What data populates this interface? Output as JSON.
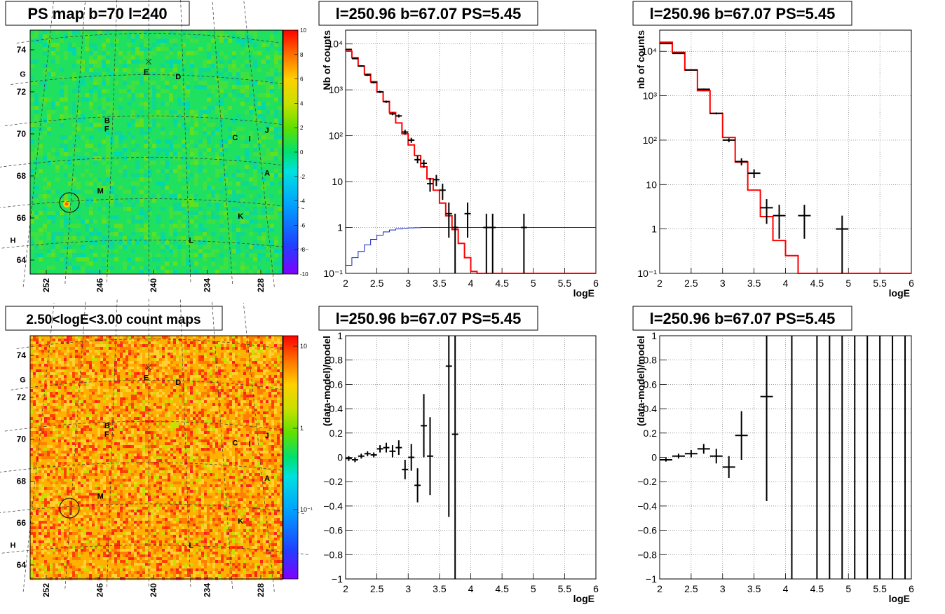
{
  "panels": [
    {
      "id": "psmap",
      "title": "PS map b=70 l=240"
    },
    {
      "id": "spec1",
      "title": "l=250.96 b=67.07 PS=5.45"
    },
    {
      "id": "spec2",
      "title": "l=250.96 b=67.07 PS=5.45"
    },
    {
      "id": "countmap",
      "title": "2.50<logE<3.00 count maps"
    },
    {
      "id": "res1",
      "title": "l=250.96 b=67.07 PS=5.45"
    },
    {
      "id": "res2",
      "title": "l=250.96 b=67.07 PS=5.45"
    }
  ],
  "maps": {
    "yticks": [
      "64",
      "66",
      "68",
      "70",
      "72",
      "74"
    ],
    "xticks": [
      "252",
      "246",
      "240",
      "234",
      "228"
    ],
    "sources": [
      {
        "label": "G",
        "l": 254.7,
        "b": 72.3
      },
      {
        "label": "E",
        "l": 240.3,
        "b": 72.0
      },
      {
        "label": "D",
        "l": 236.6,
        "b": 71.8
      },
      {
        "label": "B",
        "l": 244.6,
        "b": 69.7
      },
      {
        "label": "F",
        "l": 244.6,
        "b": 69.3
      },
      {
        "label": "C",
        "l": 230.6,
        "b": 69.0
      },
      {
        "label": "I",
        "l": 229.0,
        "b": 69.0
      },
      {
        "label": "J",
        "l": 227.0,
        "b": 69.5
      },
      {
        "label": "A",
        "l": 227.5,
        "b": 67.4
      },
      {
        "label": "M",
        "l": 245.0,
        "b": 66.3
      },
      {
        "label": "K",
        "l": 230.7,
        "b": 65.2
      },
      {
        "label": "H",
        "l": 253.5,
        "b": 64.2
      },
      {
        "label": "L",
        "l": 235.8,
        "b": 63.9
      }
    ],
    "psmap_scale": [
      "10",
      "8",
      "6",
      "4",
      "2",
      "0",
      "-2",
      "-4",
      "-6",
      "-8",
      "-10"
    ],
    "count_scale": [
      "10",
      "1",
      "10⁻¹"
    ]
  },
  "chart_data": [
    {
      "type": "step-with-errorbars",
      "ylabel": "Nb of counts",
      "xlabel": "logE",
      "xlim": [
        2,
        6
      ],
      "ylim": [
        0.1,
        20000
      ],
      "yscale": "log",
      "grid": true,
      "xticks": [
        "2",
        "2.5",
        "3",
        "3.5",
        "4",
        "4.5",
        "5",
        "5.5",
        "6"
      ],
      "yticks": [
        "10⁻¹",
        "1",
        "10",
        "10²",
        "10³",
        "10⁴"
      ],
      "model_red": {
        "edges": [
          2,
          2.1,
          2.2,
          2.3,
          2.4,
          2.5,
          2.6,
          2.7,
          2.8,
          2.9,
          3.0,
          3.1,
          3.2,
          3.3,
          3.4,
          3.5,
          3.6,
          3.7,
          3.8,
          3.9,
          4.0,
          4.1,
          6.0
        ],
        "values": [
          7000,
          5000,
          3300,
          2200,
          1500,
          900,
          560,
          320,
          190,
          110,
          63,
          37,
          21,
          11.5,
          6.5,
          3.4,
          1.8,
          0.9,
          0.45,
          0.22,
          0.11,
          0.1
        ]
      },
      "model_blue": {
        "edges": [
          2,
          2.1,
          2.2,
          2.3,
          2.4,
          2.5,
          2.6,
          2.7,
          2.8,
          2.9,
          3.0,
          3.1,
          3.2,
          3.3,
          3.4,
          3.5,
          6.0
        ],
        "values": [
          0.15,
          0.22,
          0.3,
          0.42,
          0.55,
          0.68,
          0.8,
          0.88,
          0.93,
          0.96,
          0.98,
          0.99,
          1,
          1,
          1,
          1
        ]
      },
      "data": [
        {
          "x": 2.05,
          "y": 7600,
          "lo": 7400,
          "hi": 7800
        },
        {
          "x": 2.15,
          "y": 4800,
          "lo": 4650,
          "hi": 4950
        },
        {
          "x": 2.25,
          "y": 3300,
          "lo": 3180,
          "hi": 3420
        },
        {
          "x": 2.35,
          "y": 2100,
          "lo": 2010,
          "hi": 2190
        },
        {
          "x": 2.45,
          "y": 1450,
          "lo": 1380,
          "hi": 1520
        },
        {
          "x": 2.55,
          "y": 900,
          "lo": 850,
          "hi": 950
        },
        {
          "x": 2.65,
          "y": 550,
          "lo": 520,
          "hi": 580
        },
        {
          "x": 2.75,
          "y": 300,
          "lo": 280,
          "hi": 320
        },
        {
          "x": 2.85,
          "y": 270,
          "lo": 250,
          "hi": 290
        },
        {
          "x": 2.95,
          "y": 120,
          "lo": 105,
          "hi": 135
        },
        {
          "x": 3.05,
          "y": 80,
          "lo": 70,
          "hi": 90
        },
        {
          "x": 3.15,
          "y": 30,
          "lo": 25,
          "hi": 36
        },
        {
          "x": 3.25,
          "y": 25,
          "lo": 20,
          "hi": 30
        },
        {
          "x": 3.35,
          "y": 9,
          "lo": 6,
          "hi": 12
        },
        {
          "x": 3.45,
          "y": 11,
          "lo": 8,
          "hi": 14
        },
        {
          "x": 3.55,
          "y": 6.5,
          "lo": 4,
          "hi": 9
        },
        {
          "x": 3.65,
          "y": 2,
          "lo": 0.6,
          "hi": 3.5
        },
        {
          "x": 3.75,
          "y": 1,
          "lo": 0.1,
          "hi": 2
        },
        {
          "x": 3.95,
          "y": 2,
          "lo": 0.6,
          "hi": 3.5
        },
        {
          "x": 4.25,
          "y": 1,
          "lo": 0.1,
          "hi": 2
        },
        {
          "x": 4.35,
          "y": 1,
          "lo": 0.1,
          "hi": 2
        },
        {
          "x": 4.85,
          "y": 1,
          "lo": 0.1,
          "hi": 2
        }
      ]
    },
    {
      "type": "step-with-errorbars",
      "ylabel": "nb of counts",
      "xlabel": "logE",
      "xlim": [
        2,
        6
      ],
      "ylim": [
        0.1,
        30000
      ],
      "yscale": "log",
      "grid": true,
      "xticks": [
        "2",
        "2.5",
        "3",
        "3.5",
        "4",
        "4.5",
        "5",
        "5.5",
        "6"
      ],
      "yticks": [
        "10⁻¹",
        "1",
        "10",
        "10²",
        "10³",
        "10⁴"
      ],
      "model_red": {
        "edges": [
          2,
          2.2,
          2.4,
          2.6,
          2.8,
          3.0,
          3.2,
          3.4,
          3.6,
          3.8,
          4.0,
          4.2,
          6.0
        ],
        "values": [
          16000,
          9500,
          3800,
          1300,
          400,
          115,
          32,
          7.5,
          1.9,
          0.55,
          0.25,
          0.1
        ]
      },
      "data": [
        {
          "x": 2.1,
          "y": 15000,
          "lo": 14700,
          "hi": 15300,
          "dx": 0.1
        },
        {
          "x": 2.3,
          "y": 9000,
          "lo": 8800,
          "hi": 9200,
          "dx": 0.1
        },
        {
          "x": 2.5,
          "y": 3800,
          "lo": 3700,
          "hi": 3900,
          "dx": 0.1
        },
        {
          "x": 2.7,
          "y": 1400,
          "lo": 1350,
          "hi": 1450,
          "dx": 0.1
        },
        {
          "x": 2.9,
          "y": 400,
          "lo": 380,
          "hi": 420,
          "dx": 0.1
        },
        {
          "x": 3.1,
          "y": 100,
          "lo": 90,
          "hi": 110,
          "dx": 0.1
        },
        {
          "x": 3.3,
          "y": 33,
          "lo": 27,
          "hi": 39,
          "dx": 0.1
        },
        {
          "x": 3.5,
          "y": 18,
          "lo": 14,
          "hi": 22,
          "dx": 0.1
        },
        {
          "x": 3.7,
          "y": 3,
          "lo": 1.3,
          "hi": 4.7,
          "dx": 0.1
        },
        {
          "x": 3.9,
          "y": 2,
          "lo": 0.6,
          "hi": 3.5,
          "dx": 0.1
        },
        {
          "x": 4.3,
          "y": 2,
          "lo": 0.6,
          "hi": 3.5,
          "dx": 0.1
        },
        {
          "x": 4.9,
          "y": 1,
          "lo": 0.1,
          "hi": 2,
          "dx": 0.1
        }
      ]
    },
    {
      "type": "scatter-with-errorbars",
      "ylabel": "(data-model)/model",
      "xlabel": "logE",
      "xlim": [
        2,
        6
      ],
      "ylim": [
        -1,
        1
      ],
      "grid": true,
      "xticks": [
        "2",
        "2.5",
        "3",
        "3.5",
        "4",
        "4.5",
        "5",
        "5.5",
        "6"
      ],
      "yticks": [
        "−1",
        "−0.8",
        "−0.6",
        "−0.4",
        "−0.2",
        "0",
        "0.2",
        "0.4",
        "0.6",
        "0.8",
        "1"
      ],
      "data": [
        {
          "x": 2.05,
          "y": -0.01,
          "lo": -0.03,
          "hi": 0.01
        },
        {
          "x": 2.15,
          "y": -0.02,
          "lo": -0.04,
          "hi": 0.0
        },
        {
          "x": 2.25,
          "y": 0.01,
          "lo": -0.01,
          "hi": 0.03
        },
        {
          "x": 2.35,
          "y": 0.03,
          "lo": 0.01,
          "hi": 0.05
        },
        {
          "x": 2.45,
          "y": 0.02,
          "lo": 0.0,
          "hi": 0.04
        },
        {
          "x": 2.55,
          "y": 0.07,
          "lo": 0.04,
          "hi": 0.1
        },
        {
          "x": 2.65,
          "y": 0.08,
          "lo": 0.04,
          "hi": 0.12
        },
        {
          "x": 2.75,
          "y": 0.05,
          "lo": 0.0,
          "hi": 0.1
        },
        {
          "x": 2.85,
          "y": 0.08,
          "lo": 0.02,
          "hi": 0.14
        },
        {
          "x": 2.95,
          "y": -0.1,
          "lo": -0.18,
          "hi": -0.02
        },
        {
          "x": 3.05,
          "y": 0.0,
          "lo": -0.11,
          "hi": 0.11
        },
        {
          "x": 3.15,
          "y": -0.23,
          "lo": -0.37,
          "hi": -0.09
        },
        {
          "x": 3.25,
          "y": 0.26,
          "lo": 0.0,
          "hi": 0.52
        },
        {
          "x": 3.35,
          "y": 0.01,
          "lo": -0.31,
          "hi": 0.33
        },
        {
          "x": 3.65,
          "y": 0.75,
          "lo": -0.49,
          "hi": 1.0
        },
        {
          "x": 3.75,
          "y": 0.19,
          "lo": -1.0,
          "hi": 1.0
        }
      ]
    },
    {
      "type": "scatter-with-errorbars",
      "ylabel": "(data-model)/model",
      "xlabel": "logE",
      "xlim": [
        2,
        6
      ],
      "ylim": [
        -1,
        1
      ],
      "grid": true,
      "xticks": [
        "2",
        "2.5",
        "3",
        "3.5",
        "4",
        "4.5",
        "5",
        "5.5",
        "6"
      ],
      "yticks": [
        "−1",
        "−0.8",
        "−0.6",
        "−0.4",
        "−0.2",
        "0",
        "0.2",
        "0.4",
        "0.6",
        "0.8",
        "1"
      ],
      "data": [
        {
          "x": 2.1,
          "y": -0.02,
          "lo": -0.035,
          "hi": -0.005,
          "dx": 0.1
        },
        {
          "x": 2.3,
          "y": 0.01,
          "lo": -0.01,
          "hi": 0.03,
          "dx": 0.1
        },
        {
          "x": 2.5,
          "y": 0.03,
          "lo": 0.0,
          "hi": 0.06,
          "dx": 0.1
        },
        {
          "x": 2.7,
          "y": 0.07,
          "lo": 0.03,
          "hi": 0.11,
          "dx": 0.1
        },
        {
          "x": 2.9,
          "y": 0.01,
          "lo": -0.05,
          "hi": 0.07,
          "dx": 0.1
        },
        {
          "x": 3.1,
          "y": -0.08,
          "lo": -0.17,
          "hi": 0.01,
          "dx": 0.1
        },
        {
          "x": 3.3,
          "y": 0.18,
          "lo": -0.02,
          "hi": 0.38,
          "dx": 0.1
        },
        {
          "x": 3.7,
          "y": 0.5,
          "lo": -0.36,
          "hi": 1.0,
          "dx": 0.1
        },
        {
          "x": 4.1,
          "y": null,
          "lo": -1,
          "hi": 1
        },
        {
          "x": 4.5,
          "y": null,
          "lo": -1,
          "hi": 1
        },
        {
          "x": 4.7,
          "y": null,
          "lo": -1,
          "hi": 1
        },
        {
          "x": 4.9,
          "y": null,
          "lo": -1,
          "hi": 1
        },
        {
          "x": 5.1,
          "y": null,
          "lo": -1,
          "hi": 1
        },
        {
          "x": 5.3,
          "y": null,
          "lo": -1,
          "hi": 1
        },
        {
          "x": 5.5,
          "y": null,
          "lo": -1,
          "hi": 1
        },
        {
          "x": 5.7,
          "y": null,
          "lo": -1,
          "hi": 1
        },
        {
          "x": 5.9,
          "y": null,
          "lo": -1,
          "hi": 1
        }
      ]
    }
  ]
}
